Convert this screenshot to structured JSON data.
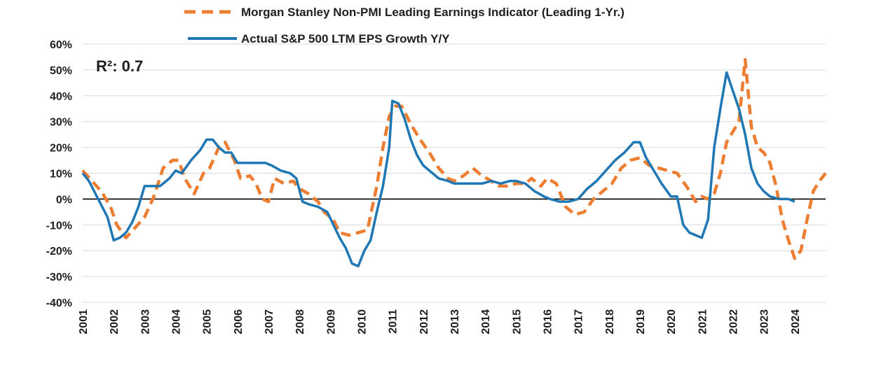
{
  "chart_data": {
    "type": "line",
    "annotation": "R²: 0.7",
    "colors": {
      "indicator": "#ED7D31",
      "actual": "#1F77B4"
    },
    "ylim": [
      -0.4,
      0.6
    ],
    "yticks": [
      -0.4,
      -0.3,
      -0.2,
      -0.1,
      0.0,
      0.1,
      0.2,
      0.3,
      0.4,
      0.5,
      0.6
    ],
    "ytick_labels": [
      "-40%",
      "-30%",
      "-20%",
      "-10%",
      "0%",
      "10%",
      "20%",
      "30%",
      "40%",
      "50%",
      "60%"
    ],
    "xlim": [
      2001.0,
      2025.0
    ],
    "xticks": [
      2001,
      2002,
      2003,
      2004,
      2005,
      2006,
      2007,
      2008,
      2009,
      2010,
      2011,
      2012,
      2013,
      2014,
      2015,
      2016,
      2017,
      2018,
      2019,
      2020,
      2021,
      2022,
      2023,
      2024
    ],
    "grid": true,
    "legend_position": "top",
    "series": [
      {
        "name": "Morgan Stanley Non-PMI Leading Earnings Indicator (Leading 1-Yr.)",
        "style": "dashed",
        "x": [
          2001.0,
          2001.3,
          2001.6,
          2001.9,
          2002.1,
          2002.4,
          2002.7,
          2003.0,
          2003.3,
          2003.6,
          2003.9,
          2004.1,
          2004.3,
          2004.6,
          2004.9,
          2005.1,
          2005.4,
          2005.6,
          2005.9,
          2006.1,
          2006.4,
          2006.6,
          2006.8,
          2007.0,
          2007.2,
          2007.5,
          2007.8,
          2008.0,
          2008.3,
          2008.6,
          2008.8,
          2009.1,
          2009.3,
          2009.6,
          2009.9,
          2010.2,
          2010.5,
          2010.7,
          2010.9,
          2011.1,
          2011.3,
          2011.6,
          2011.9,
          2012.2,
          2012.5,
          2012.8,
          2013.0,
          2013.3,
          2013.6,
          2013.9,
          2014.2,
          2014.4,
          2014.7,
          2015.0,
          2015.3,
          2015.5,
          2015.8,
          2016.0,
          2016.3,
          2016.6,
          2016.9,
          2017.2,
          2017.5,
          2017.8,
          2018.1,
          2018.4,
          2018.7,
          2019.0,
          2019.3,
          2019.6,
          2019.9,
          2020.2,
          2020.5,
          2020.8,
          2021.0,
          2021.2,
          2021.4,
          2021.6,
          2021.8,
          2022.0,
          2022.2,
          2022.4,
          2022.6,
          2022.8,
          2023.0,
          2023.2,
          2023.4,
          2023.6,
          2023.8,
          2024.0,
          2024.2,
          2024.4,
          2024.6,
          2024.8,
          2025.0
        ],
        "y": [
          0.11,
          0.07,
          0.03,
          -0.03,
          -0.1,
          -0.15,
          -0.11,
          -0.07,
          0.01,
          0.12,
          0.15,
          0.15,
          0.08,
          0.02,
          0.1,
          0.12,
          0.2,
          0.22,
          0.15,
          0.08,
          0.09,
          0.06,
          0.0,
          -0.01,
          0.08,
          0.06,
          0.07,
          0.04,
          0.02,
          -0.01,
          -0.05,
          -0.08,
          -0.13,
          -0.14,
          -0.13,
          -0.12,
          0.05,
          0.2,
          0.32,
          0.36,
          0.36,
          0.29,
          0.23,
          0.18,
          0.12,
          0.08,
          0.07,
          0.09,
          0.12,
          0.09,
          0.07,
          0.05,
          0.05,
          0.06,
          0.06,
          0.08,
          0.05,
          0.08,
          0.06,
          -0.03,
          -0.06,
          -0.05,
          0.0,
          0.03,
          0.06,
          0.12,
          0.15,
          0.16,
          0.13,
          0.12,
          0.11,
          0.1,
          0.05,
          -0.01,
          0.01,
          0.0,
          0.02,
          0.1,
          0.22,
          0.26,
          0.3,
          0.54,
          0.28,
          0.2,
          0.18,
          0.14,
          0.05,
          -0.08,
          -0.16,
          -0.23,
          -0.2,
          -0.08,
          0.03,
          0.07,
          0.1
        ]
      },
      {
        "name": "Actual S&P 500 LTM EPS Growth Y/Y",
        "style": "solid",
        "x": [
          2001.0,
          2001.2,
          2001.5,
          2001.8,
          2002.0,
          2002.2,
          2002.4,
          2002.6,
          2002.8,
          2003.0,
          2003.2,
          2003.5,
          2003.8,
          2004.0,
          2004.2,
          2004.5,
          2004.8,
          2005.0,
          2005.2,
          2005.4,
          2005.6,
          2005.8,
          2006.0,
          2006.3,
          2006.6,
          2006.9,
          2007.1,
          2007.4,
          2007.7,
          2007.9,
          2008.1,
          2008.3,
          2008.6,
          2008.9,
          2009.1,
          2009.3,
          2009.5,
          2009.7,
          2009.9,
          2010.1,
          2010.3,
          2010.5,
          2010.7,
          2010.9,
          2011.0,
          2011.2,
          2011.4,
          2011.6,
          2011.8,
          2012.0,
          2012.2,
          2012.5,
          2012.8,
          2013.0,
          2013.3,
          2013.6,
          2013.9,
          2014.2,
          2014.5,
          2014.8,
          2015.0,
          2015.3,
          2015.6,
          2015.9,
          2016.1,
          2016.4,
          2016.7,
          2017.0,
          2017.3,
          2017.6,
          2017.9,
          2018.2,
          2018.5,
          2018.8,
          2019.0,
          2019.2,
          2019.4,
          2019.7,
          2020.0,
          2020.2,
          2020.4,
          2020.6,
          2020.8,
          2021.0,
          2021.2,
          2021.4,
          2021.6,
          2021.8,
          2022.0,
          2022.2,
          2022.4,
          2022.6,
          2022.8,
          2023.0,
          2023.2,
          2023.5,
          2023.8,
          2024.0
        ],
        "y": [
          0.1,
          0.07,
          0.0,
          -0.07,
          -0.16,
          -0.15,
          -0.13,
          -0.09,
          -0.03,
          0.05,
          0.05,
          0.05,
          0.08,
          0.11,
          0.1,
          0.15,
          0.19,
          0.23,
          0.23,
          0.2,
          0.18,
          0.18,
          0.14,
          0.14,
          0.14,
          0.14,
          0.13,
          0.11,
          0.1,
          0.08,
          -0.01,
          -0.02,
          -0.03,
          -0.05,
          -0.1,
          -0.15,
          -0.19,
          -0.25,
          -0.26,
          -0.2,
          -0.16,
          -0.05,
          0.05,
          0.2,
          0.38,
          0.37,
          0.31,
          0.23,
          0.17,
          0.13,
          0.11,
          0.08,
          0.07,
          0.06,
          0.06,
          0.06,
          0.06,
          0.07,
          0.06,
          0.07,
          0.07,
          0.06,
          0.03,
          0.01,
          0.0,
          -0.01,
          -0.01,
          0.0,
          0.04,
          0.07,
          0.11,
          0.15,
          0.18,
          0.22,
          0.22,
          0.16,
          0.12,
          0.06,
          0.01,
          0.01,
          -0.1,
          -0.13,
          -0.14,
          -0.15,
          -0.08,
          0.2,
          0.35,
          0.49,
          0.42,
          0.35,
          0.25,
          0.12,
          0.06,
          0.03,
          0.01,
          0.0,
          0.0,
          -0.01
        ]
      }
    ]
  }
}
